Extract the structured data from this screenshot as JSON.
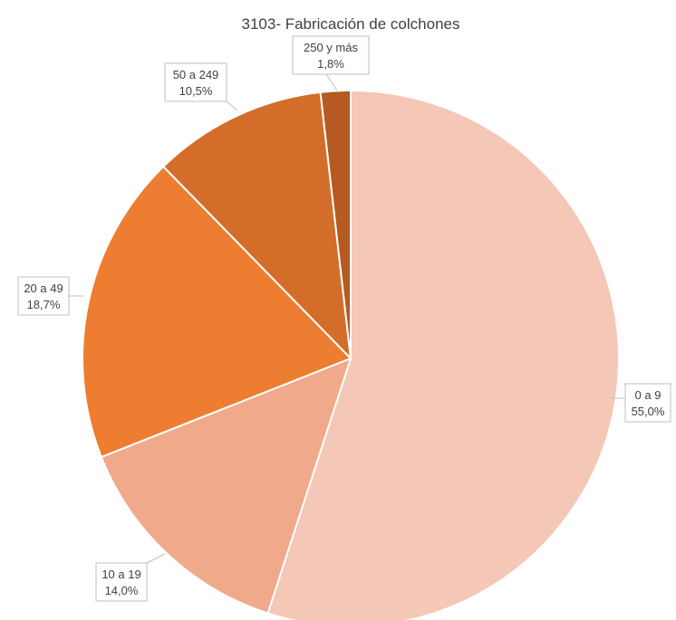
{
  "chart_data": {
    "type": "pie",
    "title": "3103- Fabricación de colchones",
    "slices": [
      {
        "category": "0 a 9",
        "value": 55.0,
        "label": "55,0%",
        "color": "#f4c7b6"
      },
      {
        "category": "10 a 19",
        "value": 14.0,
        "label": "14,0%",
        "color": "#f0a98a"
      },
      {
        "category": "20 a 49",
        "value": 18.7,
        "label": "18,7%",
        "color": "#ed7d31"
      },
      {
        "category": "50 a 249",
        "value": 10.5,
        "label": "10,5%",
        "color": "#d56d2a"
      },
      {
        "category": "250 y más",
        "value": 1.8,
        "label": "1,8%",
        "color": "#b55a22"
      }
    ],
    "start": "12 o'clock",
    "direction": "clockwise",
    "legend": "none",
    "data_labels": "outside with leader lines"
  }
}
